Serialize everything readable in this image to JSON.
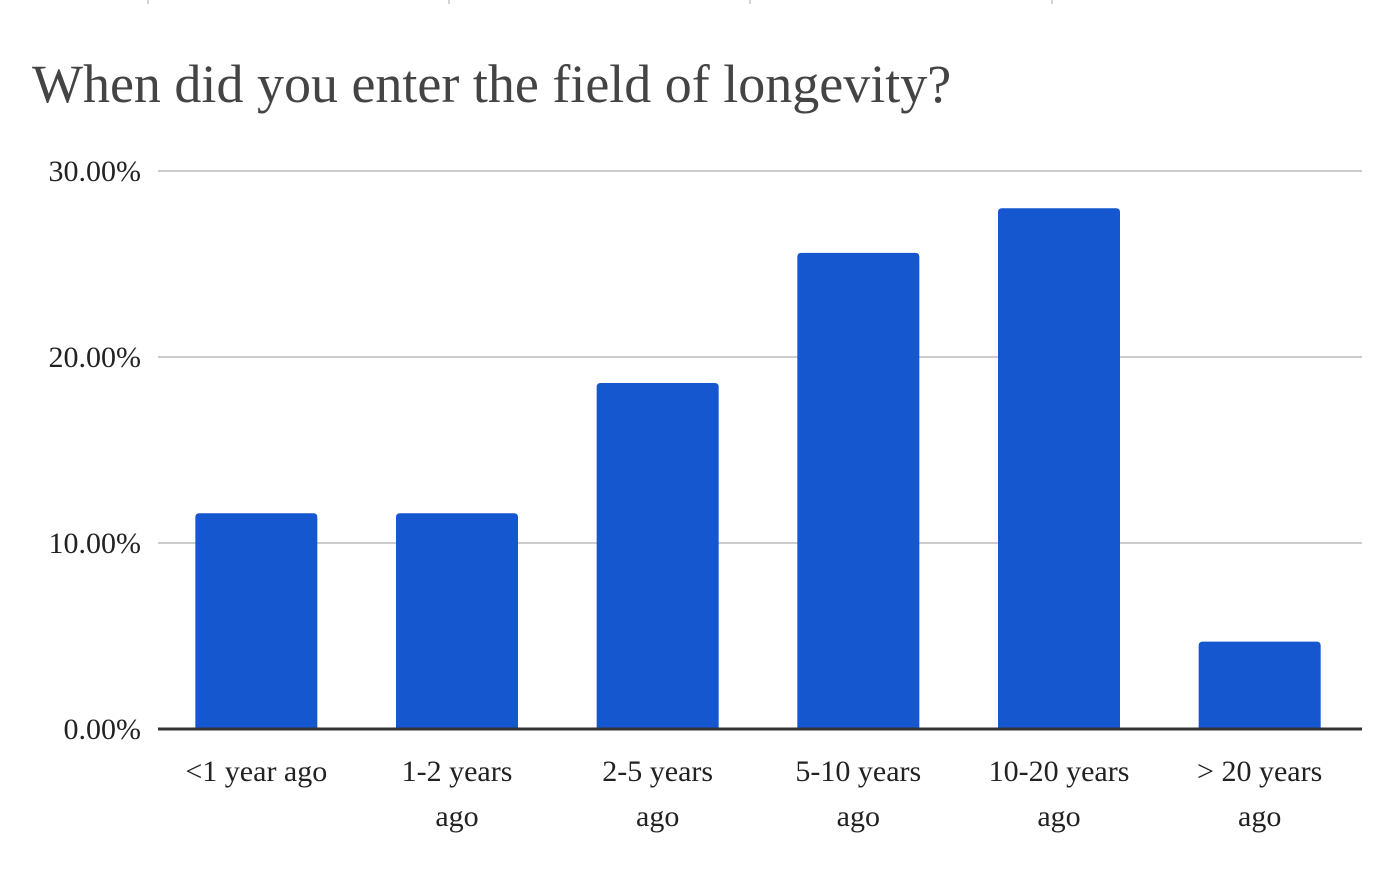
{
  "chart_data": {
    "type": "bar",
    "title": "When did you enter the field of longevity?",
    "xlabel": "",
    "ylabel": "",
    "categories": [
      [
        "<1 year ago"
      ],
      [
        "1-2 years",
        "ago"
      ],
      [
        "2-5 years",
        "ago"
      ],
      [
        "5-10 years",
        "ago"
      ],
      [
        "10-20 years",
        "ago"
      ],
      [
        "> 20 years",
        "ago"
      ]
    ],
    "values": [
      11.6,
      11.6,
      18.6,
      25.6,
      28.0,
      4.7
    ],
    "ylim": [
      0,
      30
    ],
    "yticks": [
      0,
      10,
      20,
      30
    ],
    "ytick_labels": [
      "0.00%",
      "10.00%",
      "20.00%",
      "30.00%"
    ],
    "grid": true,
    "legend": "none",
    "bar_color": "#1457cf"
  }
}
